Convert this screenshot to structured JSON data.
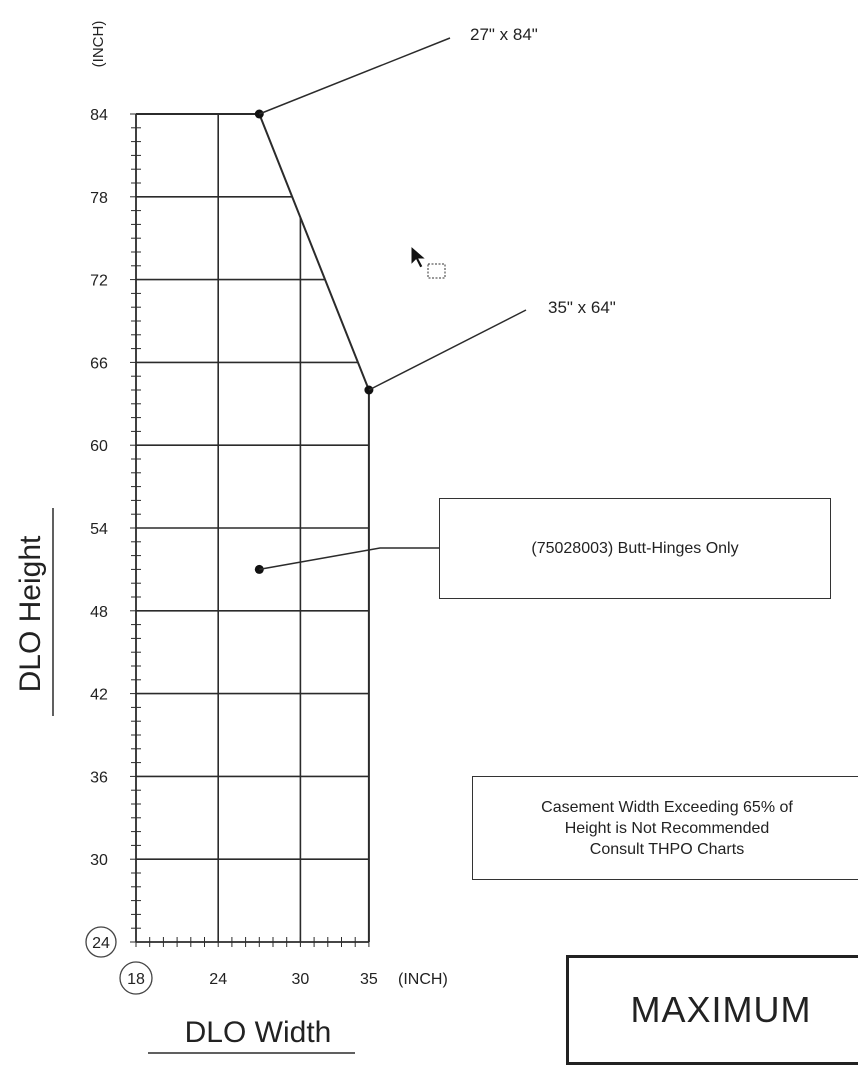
{
  "chart_data": {
    "type": "line",
    "xlabel": "DLO Width",
    "ylabel": "DLO Height",
    "x_unit": "(INCH)",
    "y_unit": "(INCH)",
    "xlim": [
      18,
      36
    ],
    "ylim": [
      24,
      84
    ],
    "x_ticks": [
      "18",
      "24",
      "30",
      "35"
    ],
    "y_ticks": [
      "84",
      "78",
      "72",
      "66",
      "60",
      "54",
      "48",
      "42",
      "36",
      "30",
      "24"
    ],
    "boundary": {
      "x": [
        18,
        27,
        35,
        35
      ],
      "y": [
        84,
        84,
        64,
        24
      ]
    },
    "points": [
      {
        "x": 27,
        "y": 84,
        "label": "27\" x 84\""
      },
      {
        "x": 35,
        "y": 64,
        "label": "35\" x 64\""
      },
      {
        "x": 27,
        "y": 51,
        "label": "(75028003) Butt-Hinges Only"
      }
    ],
    "grid": true
  },
  "notes": {
    "butt_hinges": "(75028003) Butt-Hinges Only",
    "casement_line1": "Casement Width Exceeding 65% of",
    "casement_line2": "Height is Not Recommended",
    "casement_line3": "Consult THPO Charts",
    "maximum": "MAXIMUM"
  },
  "colors": {
    "line": "#2b2b2b",
    "text": "#222222"
  }
}
